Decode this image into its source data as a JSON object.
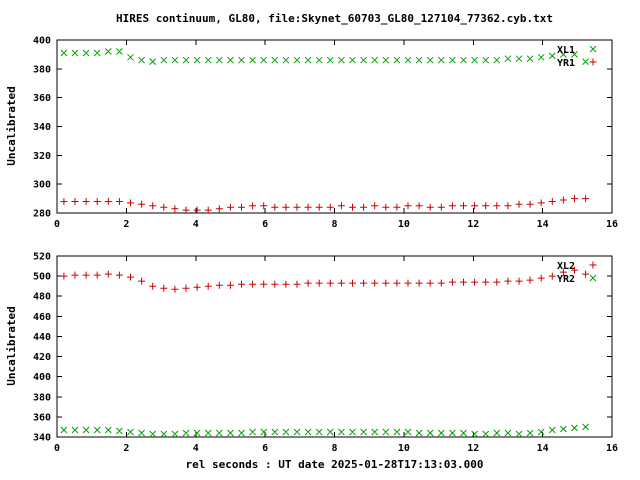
{
  "title": "HIRES continuum, GL80, file:Skynet_60703_GL80_127104_77362.cyb.txt",
  "xlabel": "rel seconds : UT date 2025-01-28T17:13:03.000",
  "colors": {
    "background": "#ffffff",
    "text": "#000000",
    "green_series": "#00a000",
    "red_series": "#cc0000"
  },
  "chart_data": [
    {
      "type": "scatter",
      "panel": "top",
      "title": "",
      "xlabel": "",
      "ylabel": "Uncalibrated",
      "xlim": [
        0,
        16
      ],
      "ylim": [
        280,
        400
      ],
      "xtick_step": 2,
      "ytick_step": 20,
      "grid": false,
      "legend_position": "top-right",
      "x": [
        0.2,
        0.52,
        0.84,
        1.16,
        1.48,
        1.8,
        2.12,
        2.44,
        2.76,
        3.08,
        3.4,
        3.72,
        4.04,
        4.36,
        4.68,
        5.0,
        5.32,
        5.64,
        5.96,
        6.28,
        6.6,
        6.92,
        7.24,
        7.56,
        7.88,
        8.2,
        8.52,
        8.84,
        9.16,
        9.48,
        9.8,
        10.12,
        10.44,
        10.76,
        11.08,
        11.4,
        11.72,
        12.04,
        12.36,
        12.68,
        13.0,
        13.32,
        13.64,
        13.96,
        14.28,
        14.6,
        14.92,
        15.24
      ],
      "series": [
        {
          "name": "XL1",
          "marker": "x",
          "color": "#00a000",
          "y": [
            391,
            391,
            391,
            391,
            392,
            392,
            388,
            386,
            385,
            386,
            386,
            386,
            386,
            386,
            386,
            386,
            386,
            386,
            386,
            386,
            386,
            386,
            386,
            386,
            386,
            386,
            386,
            386,
            386,
            386,
            386,
            386,
            386,
            386,
            386,
            386,
            386,
            386,
            386,
            386,
            387,
            387,
            387,
            388,
            389,
            390,
            390,
            385
          ]
        },
        {
          "name": "YR1",
          "marker": "+",
          "color": "#cc0000",
          "y": [
            288,
            288,
            288,
            288,
            288,
            288,
            287,
            286,
            285,
            284,
            283,
            282,
            282,
            282,
            283,
            284,
            284,
            285,
            285,
            284,
            284,
            284,
            284,
            284,
            284,
            285,
            284,
            284,
            285,
            284,
            284,
            285,
            285,
            284,
            284,
            285,
            285,
            285,
            285,
            285,
            285,
            286,
            286,
            287,
            288,
            289,
            290,
            290
          ]
        }
      ]
    },
    {
      "type": "scatter",
      "panel": "bottom",
      "title": "",
      "xlabel": "rel seconds : UT date 2025-01-28T17:13:03.000",
      "ylabel": "Uncalibrated",
      "xlim": [
        0,
        16
      ],
      "ylim": [
        340,
        520
      ],
      "xtick_step": 2,
      "ytick_step": 20,
      "grid": false,
      "legend_position": "top-right",
      "x": [
        0.2,
        0.52,
        0.84,
        1.16,
        1.48,
        1.8,
        2.12,
        2.44,
        2.76,
        3.08,
        3.4,
        3.72,
        4.04,
        4.36,
        4.68,
        5.0,
        5.32,
        5.64,
        5.96,
        6.28,
        6.6,
        6.92,
        7.24,
        7.56,
        7.88,
        8.2,
        8.52,
        8.84,
        9.16,
        9.48,
        9.8,
        10.12,
        10.44,
        10.76,
        11.08,
        11.4,
        11.72,
        12.04,
        12.36,
        12.68,
        13.0,
        13.32,
        13.64,
        13.96,
        14.28,
        14.6,
        14.92,
        15.24
      ],
      "series": [
        {
          "name": "XL2",
          "marker": "+",
          "color": "#cc0000",
          "y": [
            500,
            501,
            501,
            501,
            502,
            501,
            499,
            495,
            490,
            488,
            487,
            488,
            489,
            490,
            491,
            491,
            492,
            492,
            492,
            492,
            492,
            492,
            493,
            493,
            493,
            493,
            493,
            493,
            493,
            493,
            493,
            493,
            493,
            493,
            493,
            494,
            494,
            494,
            494,
            494,
            495,
            495,
            496,
            498,
            500,
            504,
            506,
            502
          ]
        },
        {
          "name": "YR2",
          "marker": "x",
          "color": "#00a000",
          "y": [
            347,
            347,
            347,
            347,
            347,
            346,
            345,
            344,
            343,
            343,
            343,
            344,
            344,
            344,
            344,
            344,
            344,
            345,
            345,
            345,
            345,
            345,
            345,
            345,
            345,
            345,
            345,
            345,
            345,
            345,
            345,
            345,
            344,
            344,
            344,
            344,
            344,
            343,
            343,
            344,
            344,
            343,
            344,
            345,
            347,
            348,
            349,
            350
          ]
        }
      ]
    }
  ]
}
